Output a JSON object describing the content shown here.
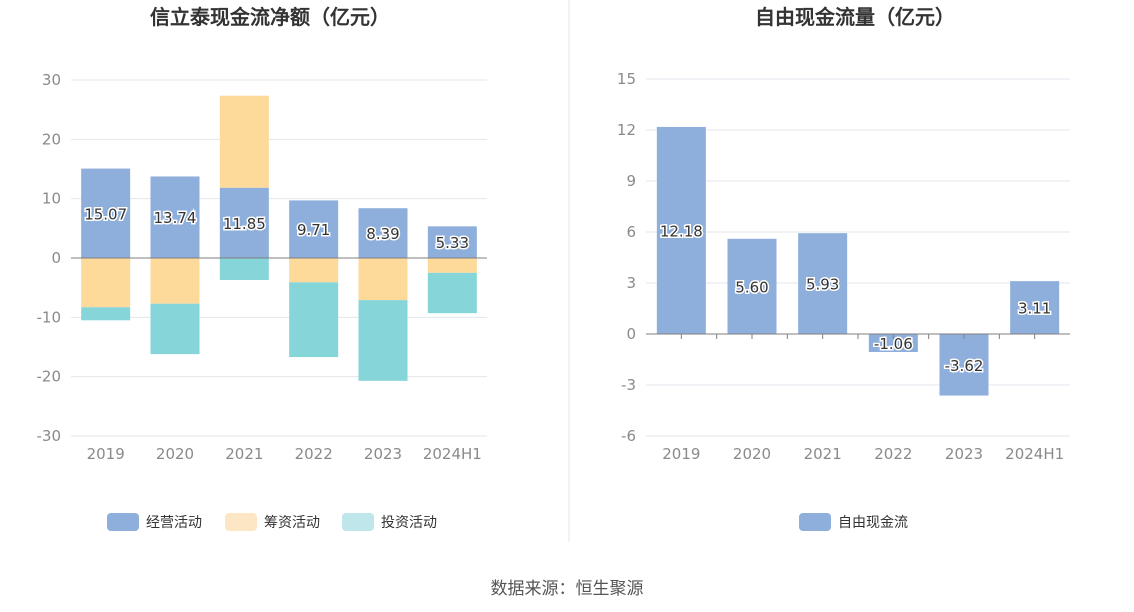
{
  "chart_data": [
    {
      "type": "bar",
      "stacked": true,
      "title": "信立泰现金流净额（亿元）",
      "categories": [
        "2019",
        "2020",
        "2021",
        "2022",
        "2023",
        "2024H1"
      ],
      "ylim": [
        -30,
        30
      ],
      "yticks": [
        "30",
        "20",
        "10",
        "0",
        "-10",
        "-20",
        "-30"
      ],
      "grid": true,
      "legend_position": "bottom",
      "series": [
        {
          "name": "经营活动",
          "color": "#8eaedc",
          "values": [
            15.07,
            13.74,
            11.85,
            9.71,
            8.39,
            5.33
          ],
          "labels": [
            "15.07",
            "13.74",
            "11.85",
            "9.71",
            "8.39",
            "5.33"
          ]
        },
        {
          "name": "筹资活动",
          "color": "#fdd99a",
          "values": [
            -8.3,
            -7.7,
            15.5,
            -4.1,
            -7.1,
            -2.5
          ]
        },
        {
          "name": "投资活动",
          "color": "#86d5d9",
          "values": [
            -2.2,
            -8.5,
            -3.7,
            -12.6,
            -13.6,
            -6.8
          ]
        }
      ],
      "legend_colors": [
        "#8eaedc",
        "#fde6c3",
        "#bfe6ea"
      ]
    },
    {
      "type": "bar",
      "title": "自由现金流量（亿元）",
      "categories": [
        "2019",
        "2020",
        "2021",
        "2022",
        "2023",
        "2024H1"
      ],
      "ylim": [
        -6,
        15
      ],
      "yticks": [
        "15",
        "12",
        "9",
        "6",
        "3",
        "0",
        "-3",
        "-6"
      ],
      "grid": true,
      "legend_position": "bottom",
      "series": [
        {
          "name": "自由现金流",
          "color": "#8eaedc",
          "values": [
            12.18,
            5.6,
            5.93,
            -1.06,
            -3.62,
            3.11
          ],
          "labels": [
            "12.18",
            "5.60",
            "5.93",
            "-1.06",
            "-3.62",
            "3.11"
          ]
        }
      ],
      "legend_colors": [
        "#8eaedc"
      ]
    }
  ],
  "source": "数据来源：恒生聚源"
}
